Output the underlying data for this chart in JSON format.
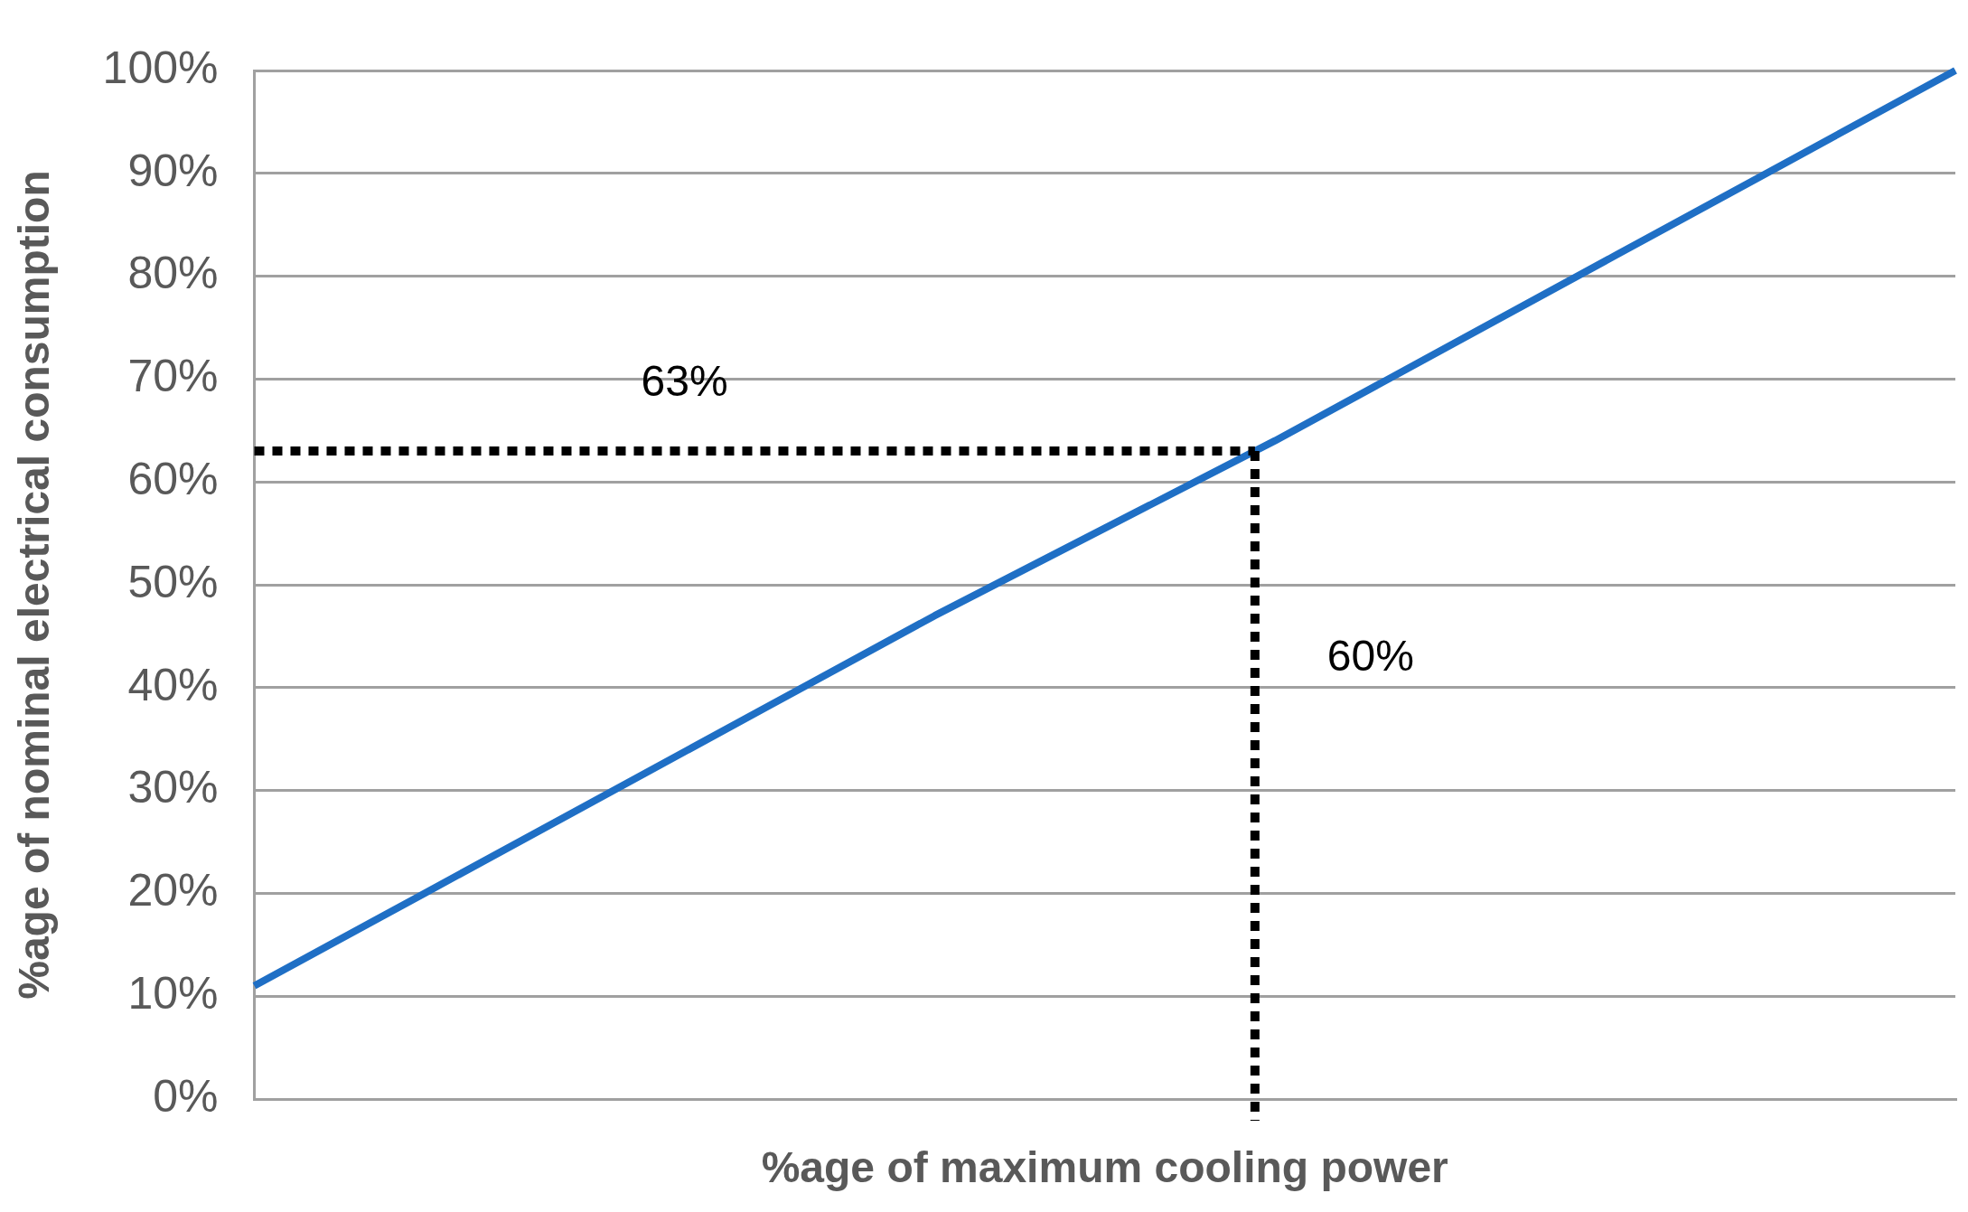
{
  "chart_data": {
    "type": "line",
    "xlabel": "%age of maximum cooling power",
    "ylabel": "%age of nominal electrical consumption",
    "categories": [
      null,
      null,
      null,
      null,
      null,
      null,
      null,
      null,
      null,
      null,
      null
    ],
    "values": [
      11,
      20,
      29,
      38,
      47,
      55.5,
      64,
      73,
      82,
      91,
      100
    ],
    "color": "#1f6fc5",
    "ylim": [
      0,
      100
    ],
    "yticks": [
      {
        "value": 0,
        "label": "0%"
      },
      {
        "value": 10,
        "label": "10%"
      },
      {
        "value": 20,
        "label": "20%"
      },
      {
        "value": 30,
        "label": "30%"
      },
      {
        "value": 40,
        "label": "40%"
      },
      {
        "value": 50,
        "label": "50%"
      },
      {
        "value": 60,
        "label": "60%"
      },
      {
        "value": 70,
        "label": "70%"
      },
      {
        "value": 80,
        "label": "80%"
      },
      {
        "value": 90,
        "label": "90%"
      },
      {
        "value": 100,
        "label": "100%"
      }
    ],
    "grid": "y",
    "legend": false,
    "marker": "none",
    "line_style": "solid",
    "ref_lines": [
      {
        "axis": "y",
        "value": 63,
        "label": "63%",
        "color": "#000000",
        "line_style": "dotted"
      }
    ],
    "annotations": [
      "60%"
    ]
  }
}
